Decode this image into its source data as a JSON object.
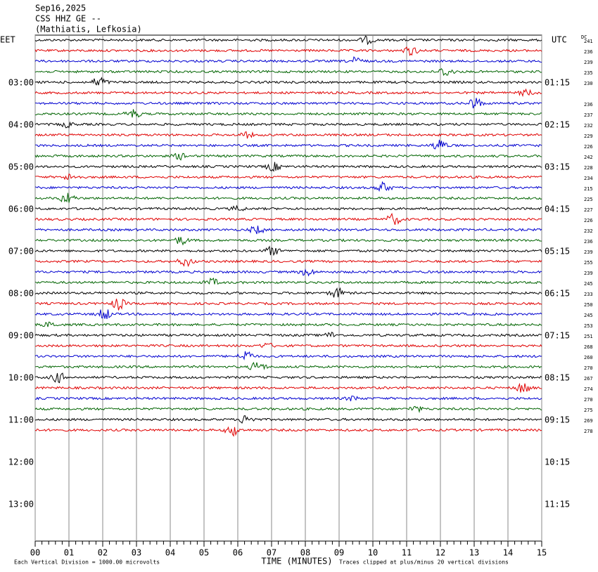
{
  "chart_data": {
    "type": "helicorder",
    "title_lines": [
      "Sep16,2025",
      "CSS HHZ GE --",
      "(Mathiatis, Lefkosia)"
    ],
    "left_axis_label": "EET",
    "right_axis_label": "UTC",
    "dc_label": "DC",
    "left_row_labels": [
      "03:00",
      "04:00",
      "05:00",
      "06:00",
      "07:00",
      "08:00",
      "09:00",
      "10:00",
      "11:00",
      "12:00",
      "13:00"
    ],
    "right_row_labels": [
      "01:15",
      "02:15",
      "03:15",
      "04:15",
      "05:15",
      "06:15",
      "07:15",
      "08:15",
      "09:15",
      "10:15",
      "11:15"
    ],
    "dc_values": [
      241,
      236,
      239,
      235,
      230,
      null,
      236,
      237,
      232,
      229,
      226,
      242,
      228,
      234,
      215,
      225,
      227,
      226,
      232,
      236,
      239,
      255,
      239,
      245,
      233,
      250,
      245,
      253,
      251,
      268,
      260,
      270,
      267,
      274,
      270,
      275,
      269,
      278
    ],
    "trace_colors": [
      "#000000",
      "#e00000",
      "#0000d0",
      "#006400"
    ],
    "xlim": [
      0,
      15
    ],
    "xticks": [
      {
        "value": 0,
        "label": "00"
      },
      {
        "value": 1,
        "label": "01"
      },
      {
        "value": 2,
        "label": "02"
      },
      {
        "value": 3,
        "label": "03"
      },
      {
        "value": 4,
        "label": "04"
      },
      {
        "value": 5,
        "label": "05"
      },
      {
        "value": 6,
        "label": "06"
      },
      {
        "value": 7,
        "label": "07"
      },
      {
        "value": 8,
        "label": "08"
      },
      {
        "value": 9,
        "label": "09"
      },
      {
        "value": 10,
        "label": "10"
      },
      {
        "value": 11,
        "label": "11"
      },
      {
        "value": 12,
        "label": "12"
      },
      {
        "value": 13,
        "label": "13"
      },
      {
        "value": 14,
        "label": "14"
      },
      {
        "value": 15,
        "label": "15"
      }
    ],
    "xlabel": "TIME (MINUTES)",
    "scale_note": "Each Vertical Division = 1000.00 microvolts",
    "clip_note": "Traces clipped at plus/minus 20 vertical divisions",
    "grid": true
  }
}
